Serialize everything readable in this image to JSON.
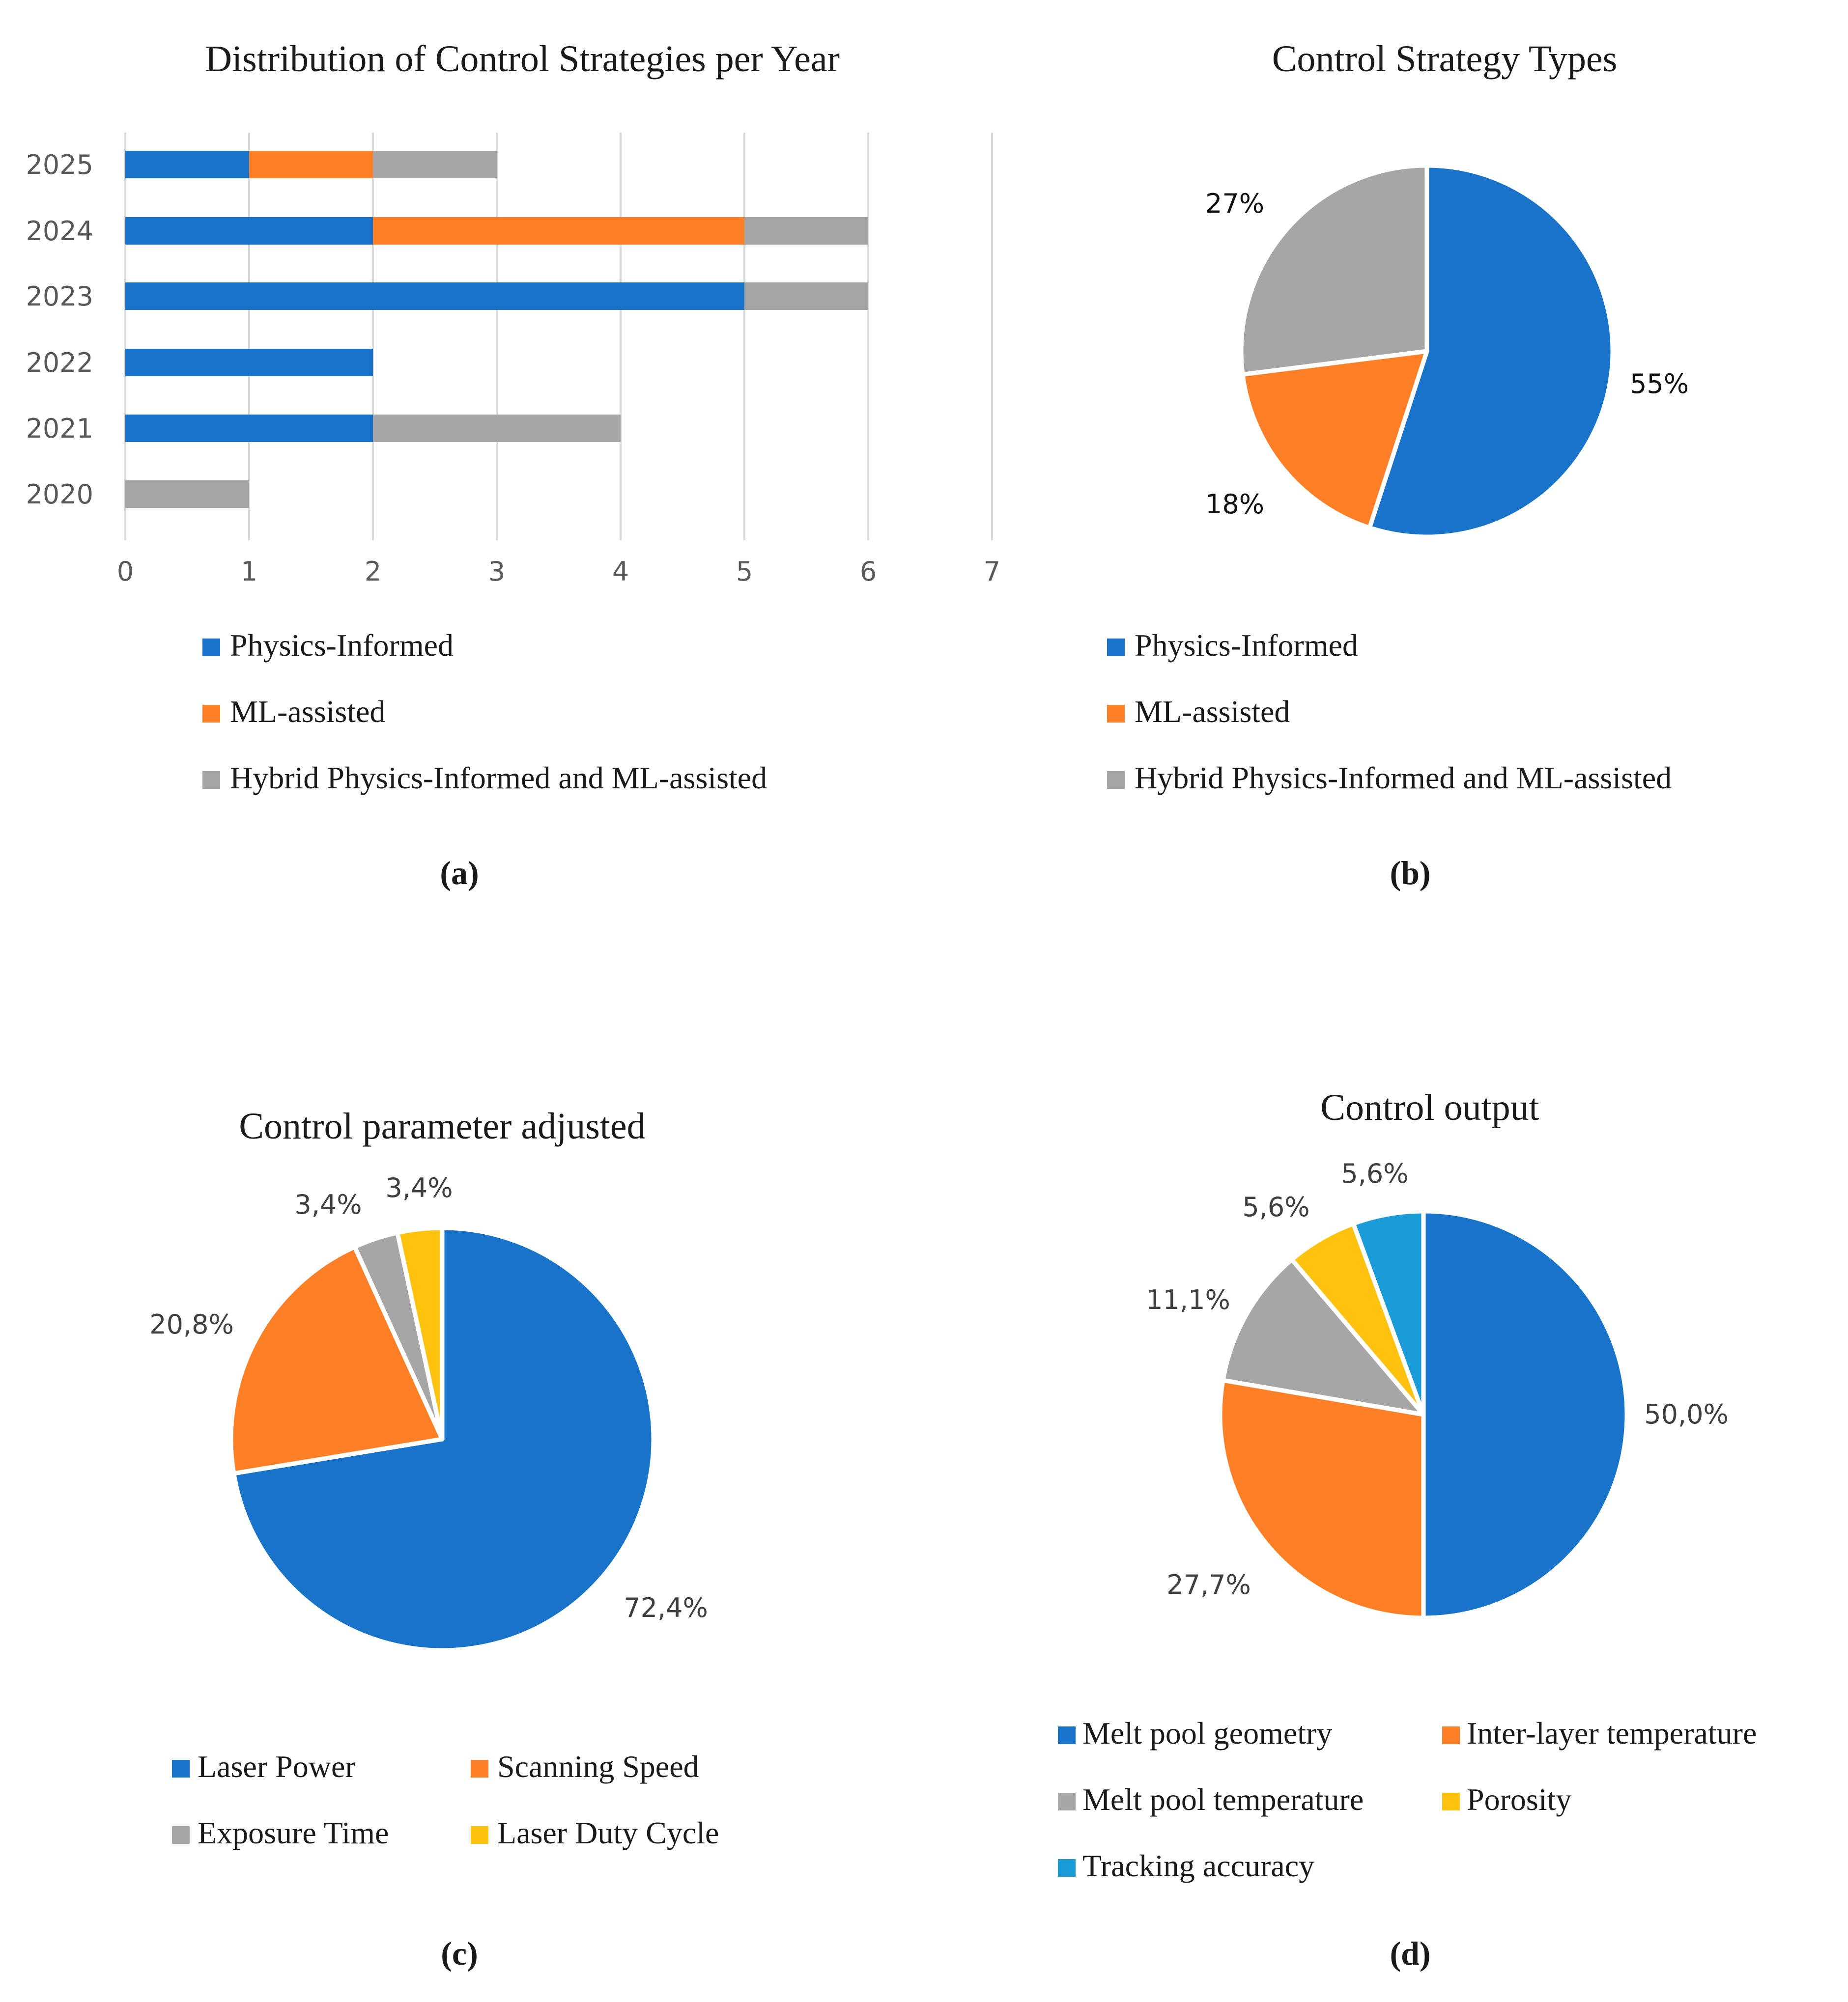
{
  "colors": {
    "physics": "#1873C9",
    "ml": "#FF7F27",
    "hybrid": "#A6A6A6",
    "yellow": "#FFC20E",
    "cyan": "#1B9BD7",
    "grid": "#D9D9D9",
    "axis_text": "#595959",
    "title_text": "#1a1a1a"
  },
  "chart_data": [
    {
      "id": "a",
      "panel_label": "(a)",
      "type": "bar",
      "orientation": "horizontal",
      "stacked": true,
      "title": "Distribution of Control Strategies per Year",
      "categories": [
        "2025",
        "2024",
        "2023",
        "2022",
        "2021",
        "2020"
      ],
      "series": [
        {
          "name": "Physics-Informed",
          "color": "physics",
          "values": [
            1,
            2,
            5,
            2,
            2,
            0
          ]
        },
        {
          "name": "ML-assisted",
          "color": "ml",
          "values": [
            1,
            3,
            0,
            0,
            0,
            0
          ]
        },
        {
          "name": "Hybrid Physics-Informed and ML-assisted",
          "color": "hybrid",
          "values": [
            1,
            1,
            1,
            0,
            2,
            1
          ]
        }
      ],
      "xlim": [
        0,
        7
      ],
      "xticks": [
        "0",
        "1",
        "2",
        "3",
        "4",
        "5",
        "6",
        "7"
      ],
      "grid": true,
      "legend_position": "bottom"
    },
    {
      "id": "b",
      "panel_label": "(b)",
      "type": "pie",
      "title": "Control Strategy Types",
      "slices": [
        {
          "name": "Physics-Informed",
          "value": 55,
          "label": "55%",
          "color": "physics"
        },
        {
          "name": "ML-assisted",
          "value": 18,
          "label": "18%",
          "color": "ml"
        },
        {
          "name": "Hybrid Physics-Informed and ML-assisted",
          "value": 27,
          "label": "27%",
          "color": "hybrid"
        }
      ],
      "legend": [
        "Physics-Informed",
        "ML-assisted",
        "Hybrid Physics-Informed and ML-assisted"
      ],
      "legend_position": "bottom"
    },
    {
      "id": "c",
      "panel_label": "(c)",
      "type": "pie",
      "title": "Control parameter adjusted",
      "slices": [
        {
          "name": "Laser Power",
          "value": 72.4,
          "label": "72,4%",
          "color": "physics"
        },
        {
          "name": "Scanning Speed",
          "value": 20.8,
          "label": "20,8%",
          "color": "ml"
        },
        {
          "name": "Exposure Time",
          "value": 3.4,
          "label": "3,4%",
          "color": "hybrid"
        },
        {
          "name": "Laser Duty Cycle",
          "value": 3.4,
          "label": "3,4%",
          "color": "yellow"
        }
      ],
      "legend": [
        "Laser Power",
        "Scanning Speed",
        "Exposure Time",
        "Laser Duty Cycle"
      ],
      "legend_position": "bottom"
    },
    {
      "id": "d",
      "panel_label": "(d)",
      "type": "pie",
      "title": "Control output",
      "slices": [
        {
          "name": "Melt pool geometry",
          "value": 50.0,
          "label": "50,0%",
          "color": "physics"
        },
        {
          "name": "Inter-layer temperature",
          "value": 27.7,
          "label": "27,7%",
          "color": "ml"
        },
        {
          "name": "Melt pool temperature",
          "value": 11.1,
          "label": "11,1%",
          "color": "hybrid"
        },
        {
          "name": "Porosity",
          "value": 5.6,
          "label": "5,6%",
          "color": "yellow"
        },
        {
          "name": "Tracking accuracy",
          "value": 5.6,
          "label": "5,6%",
          "color": "cyan"
        }
      ],
      "legend": [
        "Melt pool geometry",
        "Inter-layer temperature",
        "Melt pool temperature",
        "Porosity",
        "Tracking accuracy"
      ],
      "legend_position": "bottom"
    }
  ]
}
